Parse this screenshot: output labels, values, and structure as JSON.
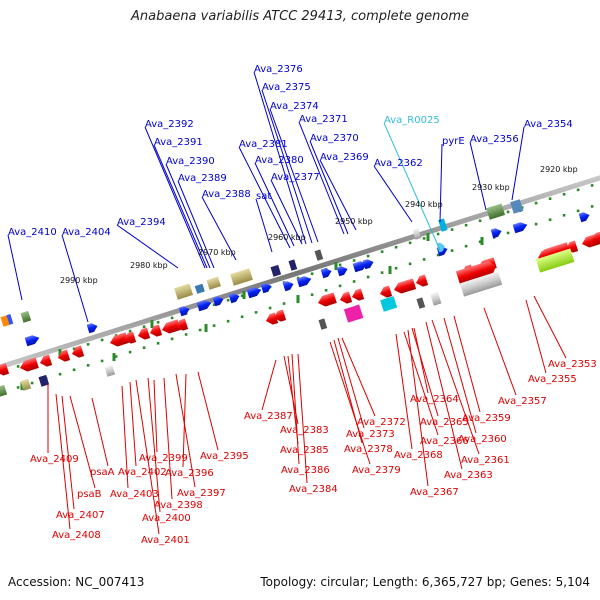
{
  "title": "Anabaena variabilis ATCC 29413, complete genome",
  "footer": {
    "accession": "Accession: NC_007413",
    "summary": "Topology: circular; Length: 6,365,727 bp; Genes: 5,104"
  },
  "colors": {
    "forward_label": "#0000cc",
    "reverse_label": "#dd0000",
    "rna_label": "#33bbdd",
    "backbone": "#888888",
    "tick": "#2a8a2a"
  },
  "ticks": [
    "2920 kbp",
    "2930 kbp",
    "2940 kbp",
    "2950 kbp",
    "2960 kbp",
    "2970 kbp",
    "2980 kbp",
    "2990 kbp"
  ],
  "forward_genes": [
    "Ava_2410",
    "Ava_2404",
    "Ava_2394",
    "Ava_2392",
    "Ava_2391",
    "Ava_2390",
    "Ava_2389",
    "Ava_2388",
    "sat",
    "Ava_2381",
    "Ava_2380",
    "Ava_2377",
    "Ava_2376",
    "Ava_2375",
    "Ava_2374",
    "Ava_2371",
    "Ava_2370",
    "Ava_2369",
    "Ava_2362",
    "pyrE",
    "Ava_2356",
    "Ava_2354"
  ],
  "rna_genes": [
    "Ava_R0025"
  ],
  "reverse_genes": [
    "Ava_2409",
    "Ava_2407",
    "Ava_2408",
    "psaB",
    "psaA",
    "Ava_2403",
    "Ava_2402",
    "Ava_2400",
    "Ava_2401",
    "Ava_2399",
    "Ava_2398",
    "Ava_2397",
    "Ava_2396",
    "Ava_2395",
    "Ava_2387",
    "Ava_2383",
    "Ava_2385",
    "Ava_2386",
    "Ava_2384",
    "Ava_2378",
    "Ava_2373",
    "Ava_2372",
    "Ava_2379",
    "Ava_2368",
    "Ava_2367",
    "Ava_2366",
    "Ava_2365",
    "Ava_2364",
    "Ava_2363",
    "Ava_2361",
    "Ava_2360",
    "Ava_2359",
    "Ava_2357",
    "Ava_2355",
    "Ava_2353"
  ]
}
